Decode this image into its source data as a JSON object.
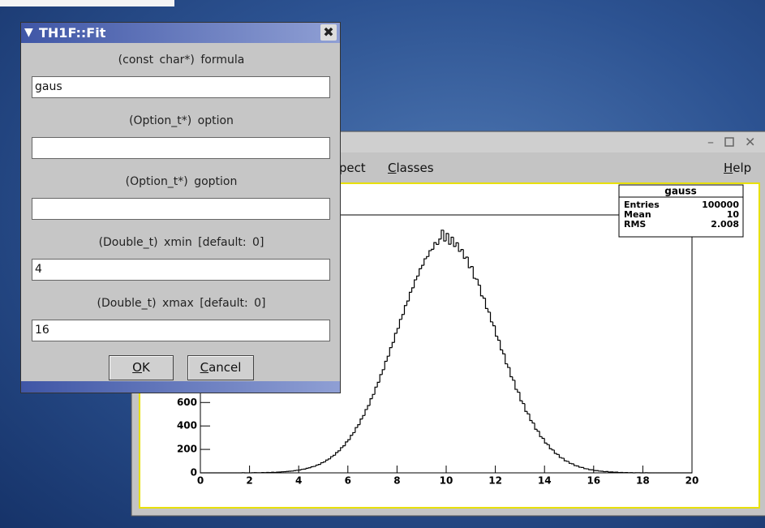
{
  "dialog": {
    "title": "TH1F::Fit",
    "fields": [
      {
        "label": "(const char*) formula",
        "value": "gaus"
      },
      {
        "label": "(Option_t*) option"
      },
      {
        "label": "(Option_t*) goption"
      },
      {
        "label": "(Double_t) xmin [default: 0]",
        "value": "4"
      },
      {
        "label": "(Double_t) xmax [default: 0]",
        "value": "16"
      }
    ],
    "buttons": [
      "OK",
      "Cancel"
    ]
  },
  "canvas_window": {
    "menu": [
      "spect",
      "Classes",
      "Help"
    ],
    "stats": {
      "title": "gauss",
      "rows": [
        {
          "label": "Entries",
          "value": 100000
        },
        {
          "label": "Mean",
          "value": 10
        },
        {
          "label": "RMS",
          "value": 2.008
        }
      ]
    }
  },
  "chart_data": {
    "type": "histogram",
    "bins": [
      0,
      0.1,
      0.2,
      0.3,
      0.4,
      0.5,
      0.6,
      0.7,
      0.8,
      0.9,
      1,
      1.1,
      1.2,
      1.3,
      1.4,
      1.5,
      1.6,
      1.7,
      1.8,
      1.9,
      2,
      2.1,
      2.2,
      2.3,
      2.4,
      2.5,
      2.6,
      2.7,
      2.8,
      2.9,
      3,
      3.1,
      3.2,
      3.3,
      3.4,
      3.5,
      3.6,
      3.7,
      3.8,
      3.9,
      4,
      4.1,
      4.2,
      4.3,
      4.4,
      4.5,
      4.6,
      4.7,
      4.8,
      4.9,
      5,
      5.1,
      5.2,
      5.3,
      5.4,
      5.5,
      5.6,
      5.7,
      5.8,
      5.9,
      6,
      6.1,
      6.2,
      6.3,
      6.4,
      6.5,
      6.6,
      6.7,
      6.8,
      6.9,
      7,
      7.1,
      7.2,
      7.3,
      7.4,
      7.5,
      7.6,
      7.7,
      7.8,
      7.9,
      8,
      8.1,
      8.2,
      8.3,
      8.4,
      8.5,
      8.6,
      8.7,
      8.8,
      8.9,
      9,
      9.1,
      9.2,
      9.3,
      9.4,
      9.5,
      9.6,
      9.7,
      9.8,
      9.9,
      10,
      10.1,
      10.2,
      10.3,
      10.4,
      10.5,
      10.6,
      10.7,
      10.8,
      10.9,
      11,
      11.1,
      11.2,
      11.3,
      11.4,
      11.5,
      11.6,
      11.7,
      11.8,
      11.9,
      12,
      12.1,
      12.2,
      12.3,
      12.4,
      12.5,
      12.6,
      12.7,
      12.8,
      12.9,
      13,
      13.1,
      13.2,
      13.3,
      13.4,
      13.5,
      13.6,
      13.7,
      13.8,
      13.9,
      14,
      14.1,
      14.2,
      14.3,
      14.4,
      14.5,
      14.6,
      14.7,
      14.8,
      14.9,
      15,
      15.1,
      15.2,
      15.3,
      15.4,
      15.5,
      15.6,
      15.7,
      15.8,
      15.9,
      16,
      16.1,
      16.2,
      16.3,
      16.4,
      16.5,
      16.6,
      16.7,
      16.8,
      16.9,
      17,
      17.1,
      17.2,
      17.3,
      17.4,
      17.5,
      17.6,
      17.7,
      17.8,
      17.9,
      18,
      18.1,
      18.2,
      18.3,
      18.4,
      18.5,
      18.6,
      18.7,
      18.8,
      18.9,
      19,
      19.1,
      19.2,
      19.3,
      19.4,
      19.5,
      19.6,
      19.7,
      19.8,
      19.9,
      20
    ],
    "values": [
      0,
      0,
      0,
      0,
      0,
      0,
      0,
      0,
      0,
      0,
      0,
      0,
      0,
      0,
      0,
      0,
      0,
      1,
      0,
      0,
      0,
      1,
      2,
      1,
      1,
      3,
      2,
      4,
      3,
      5,
      4,
      6,
      7,
      9,
      10,
      12,
      14,
      15,
      19,
      22,
      24,
      30,
      32,
      39,
      43,
      52,
      55,
      66,
      72,
      86,
      93,
      109,
      119,
      138,
      150,
      173,
      188,
      215,
      231,
      264,
      283,
      320,
      343,
      386,
      411,
      459,
      489,
      540,
      574,
      632,
      669,
      731,
      772,
      838,
      880,
      951,
      995,
      1068,
      1112,
      1190,
      1232,
      1309,
      1351,
      1427,
      1466,
      1540,
      1578,
      1646,
      1679,
      1741,
      1770,
      1826,
      1845,
      1895,
      1907,
      1964,
      1948,
      1994,
      2070,
      1978,
      2042,
      1950,
      2010,
      1931,
      1962,
      1889,
      1905,
      1830,
      1840,
      1750,
      1760,
      1660,
      1652,
      1601,
      1510,
      1490,
      1402,
      1371,
      1288,
      1255,
      1166,
      1131,
      1049,
      1015,
      930,
      899,
      820,
      790,
      712,
      688,
      615,
      591,
      524,
      503,
      446,
      425,
      372,
      355,
      309,
      294,
      254,
      241,
      206,
      195,
      166,
      157,
      131,
      125,
      103,
      98,
      81,
      77,
      62,
      59,
      48,
      46,
      36,
      34,
      27,
      26,
      20,
      19,
      15,
      14,
      10,
      11,
      7,
      8,
      5,
      6,
      3,
      4,
      2,
      3,
      1,
      2,
      0,
      1,
      1,
      0,
      0,
      1,
      0,
      0,
      0,
      0,
      0,
      0,
      0,
      0,
      0,
      0,
      0,
      0,
      0,
      0,
      0,
      0,
      0,
      0
    ],
    "xlim": [
      0,
      20
    ],
    "ylim": [
      0,
      2200
    ],
    "xticks": [
      0,
      2,
      4,
      6,
      8,
      10,
      12,
      14,
      16,
      18,
      20
    ],
    "yticks": [
      0,
      200,
      400,
      600
    ],
    "color": "#000000"
  }
}
